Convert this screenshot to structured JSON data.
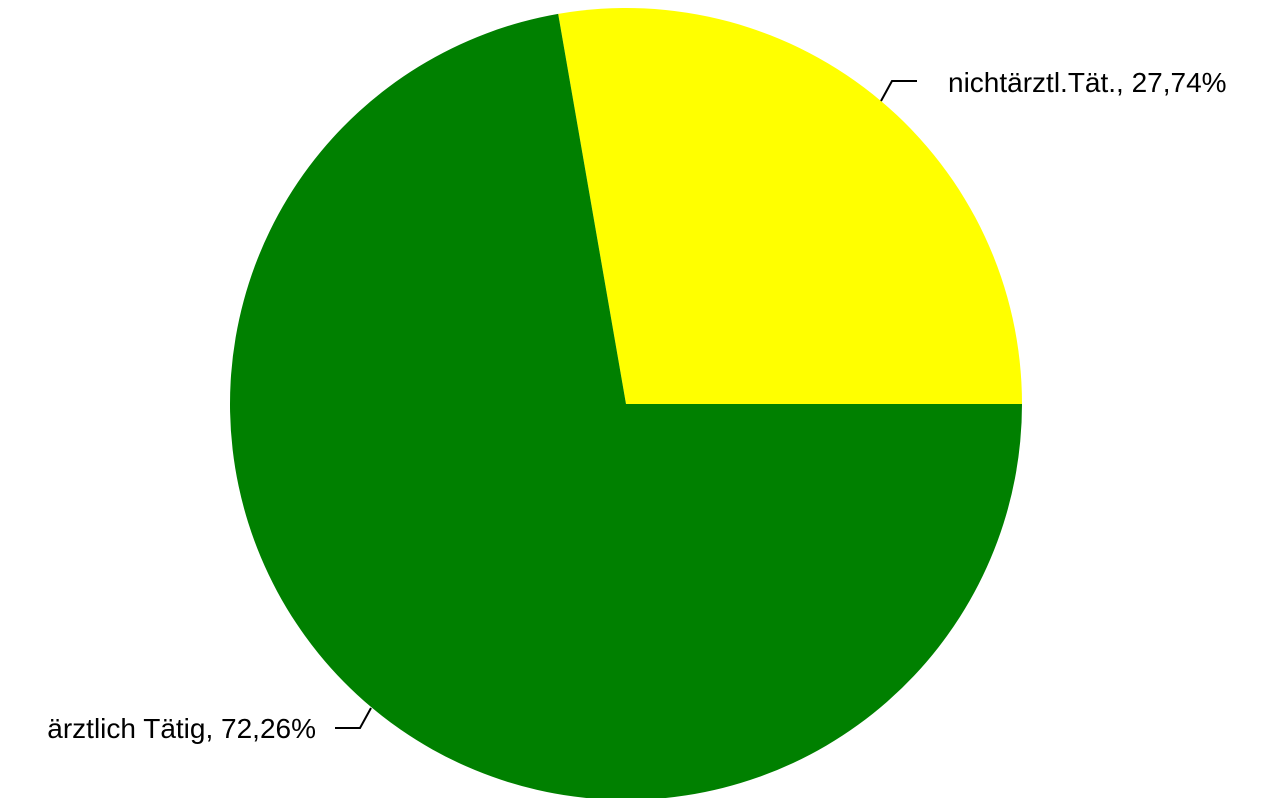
{
  "chart_data": {
    "type": "pie",
    "title": "",
    "start_angle_deg": 0,
    "direction": "counterclockwise",
    "slices": [
      {
        "name": "nichtärztl.Tät.",
        "value": 27.74,
        "label": "nichtärztl.Tät., 27,74%",
        "color": "#ffff00"
      },
      {
        "name": "ärztlich Tätig",
        "value": 72.26,
        "label": "ärztlich Tätig, 72,26%",
        "color": "#008000"
      }
    ],
    "legend": "none",
    "labels": "outside with leader lines"
  }
}
